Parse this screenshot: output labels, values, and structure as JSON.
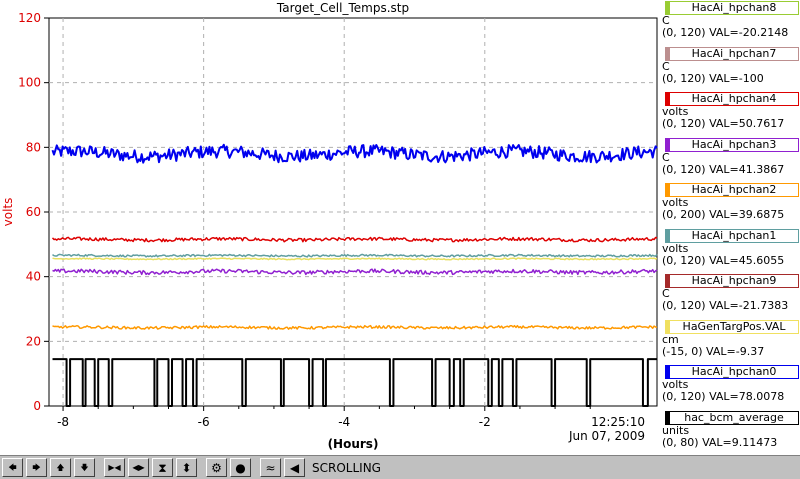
{
  "chart_data": {
    "type": "line",
    "title": "Target_Cell_Temps.stp",
    "xlabel": "(Hours)",
    "ylabel": "volts",
    "xlim": [
      -8.2,
      0.45
    ],
    "ylim": [
      0,
      120
    ],
    "x_ticks": [
      -8,
      -6,
      -4,
      -2
    ],
    "x_tick_labels": [
      "-8",
      "-6",
      "-4",
      "-2"
    ],
    "y_ticks": [
      0,
      20,
      40,
      60,
      80,
      100,
      120
    ],
    "y_tick_labels": [
      "0",
      "20",
      "40",
      "60",
      "80",
      "100",
      "120"
    ],
    "end_time": "12:25:10",
    "end_date": "Jun 07, 2009",
    "grid": true,
    "series": [
      {
        "name": "HacAi_hpchan0",
        "color": "#0000ee",
        "level": 78,
        "noise": 2.0,
        "width": 2
      },
      {
        "name": "HacAi_hpchan4",
        "color": "#dd0000",
        "level": 51.5,
        "noise": 0.5,
        "width": 1.5
      },
      {
        "name": "HacAi_hpchan1",
        "color": "#5f9ea0",
        "level": 46.5,
        "noise": 0.3,
        "width": 1.5
      },
      {
        "name": "HaGenTargPos.VAL",
        "color": "#e8e060",
        "level": 45.5,
        "noise": 0.2,
        "width": 1.5
      },
      {
        "name": "HacAi_hpchan3",
        "color": "#9020d0",
        "level": 41.5,
        "noise": 0.6,
        "width": 1.5
      },
      {
        "name": "HacAi_hpchan2",
        "color": "#ff9900",
        "level": 24.3,
        "noise": 0.4,
        "width": 1.5
      },
      {
        "name": "hac_bcm_average",
        "color": "#000000",
        "high": 14.5,
        "low": 0,
        "width": 2
      }
    ]
  },
  "legend": [
    {
      "name": "HacAi_hpchan8",
      "color": "#99cc33",
      "unit": "C",
      "range": "(0, 120) VAL=-20.2148"
    },
    {
      "name": "HacAi_hpchan7",
      "color": "#bc8f8f",
      "unit": "C",
      "range": "(0, 120) VAL=-100"
    },
    {
      "name": "HacAi_hpchan4",
      "color": "#dd0000",
      "unit": "volts",
      "range": "(0, 120) VAL=50.7617"
    },
    {
      "name": "HacAi_hpchan3",
      "color": "#9020d0",
      "unit": "C",
      "range": "(0, 120) VAL=41.3867"
    },
    {
      "name": "HacAi_hpchan2",
      "color": "#ff9900",
      "unit": "volts",
      "range": "(0, 200) VAL=39.6875"
    },
    {
      "name": "HacAi_hpchan1",
      "color": "#5f9ea0",
      "unit": "volts",
      "range": "(0, 120) VAL=45.6055"
    },
    {
      "name": "HacAi_hpchan9",
      "color": "#a52a2a",
      "unit": "C",
      "range": "(0, 120) VAL=-21.7383"
    },
    {
      "name": "HaGenTargPos.VAL",
      "color": "#f0e060",
      "unit": "cm",
      "range": "(-15, 0) VAL=-9.37"
    },
    {
      "name": "HacAi_hpchan0",
      "color": "#0000ee",
      "unit": "volts",
      "range": "(0, 120) VAL=78.0078"
    },
    {
      "name": "hac_bcm_average",
      "color": "#000000",
      "unit": "units",
      "range": "(0, 80) VAL=9.11473"
    }
  ],
  "toolbar": {
    "buttons": [
      {
        "icon": "arrow-left-icon",
        "glyph": "🡄"
      },
      {
        "icon": "arrow-right-icon",
        "glyph": "🡆"
      },
      {
        "icon": "arrow-up-icon",
        "glyph": "🡅"
      },
      {
        "icon": "arrow-down-icon",
        "glyph": "🡇"
      },
      {
        "icon": "zoom-in-horizontal-icon",
        "glyph": "▶◀"
      },
      {
        "icon": "zoom-out-horizontal-icon",
        "glyph": "◀▶"
      },
      {
        "icon": "zoom-in-vertical-icon",
        "glyph": "⧗"
      },
      {
        "icon": "zoom-out-vertical-icon",
        "glyph": "⬍"
      },
      {
        "icon": "settings-wheel-icon",
        "glyph": "⚙"
      },
      {
        "icon": "record-icon",
        "glyph": "●"
      },
      {
        "icon": "waveform-icon",
        "glyph": "≈"
      },
      {
        "icon": "scroll-back-icon",
        "glyph": "◀"
      }
    ],
    "mode": "SCROLLING"
  },
  "axis_label_color": "#dd0000"
}
